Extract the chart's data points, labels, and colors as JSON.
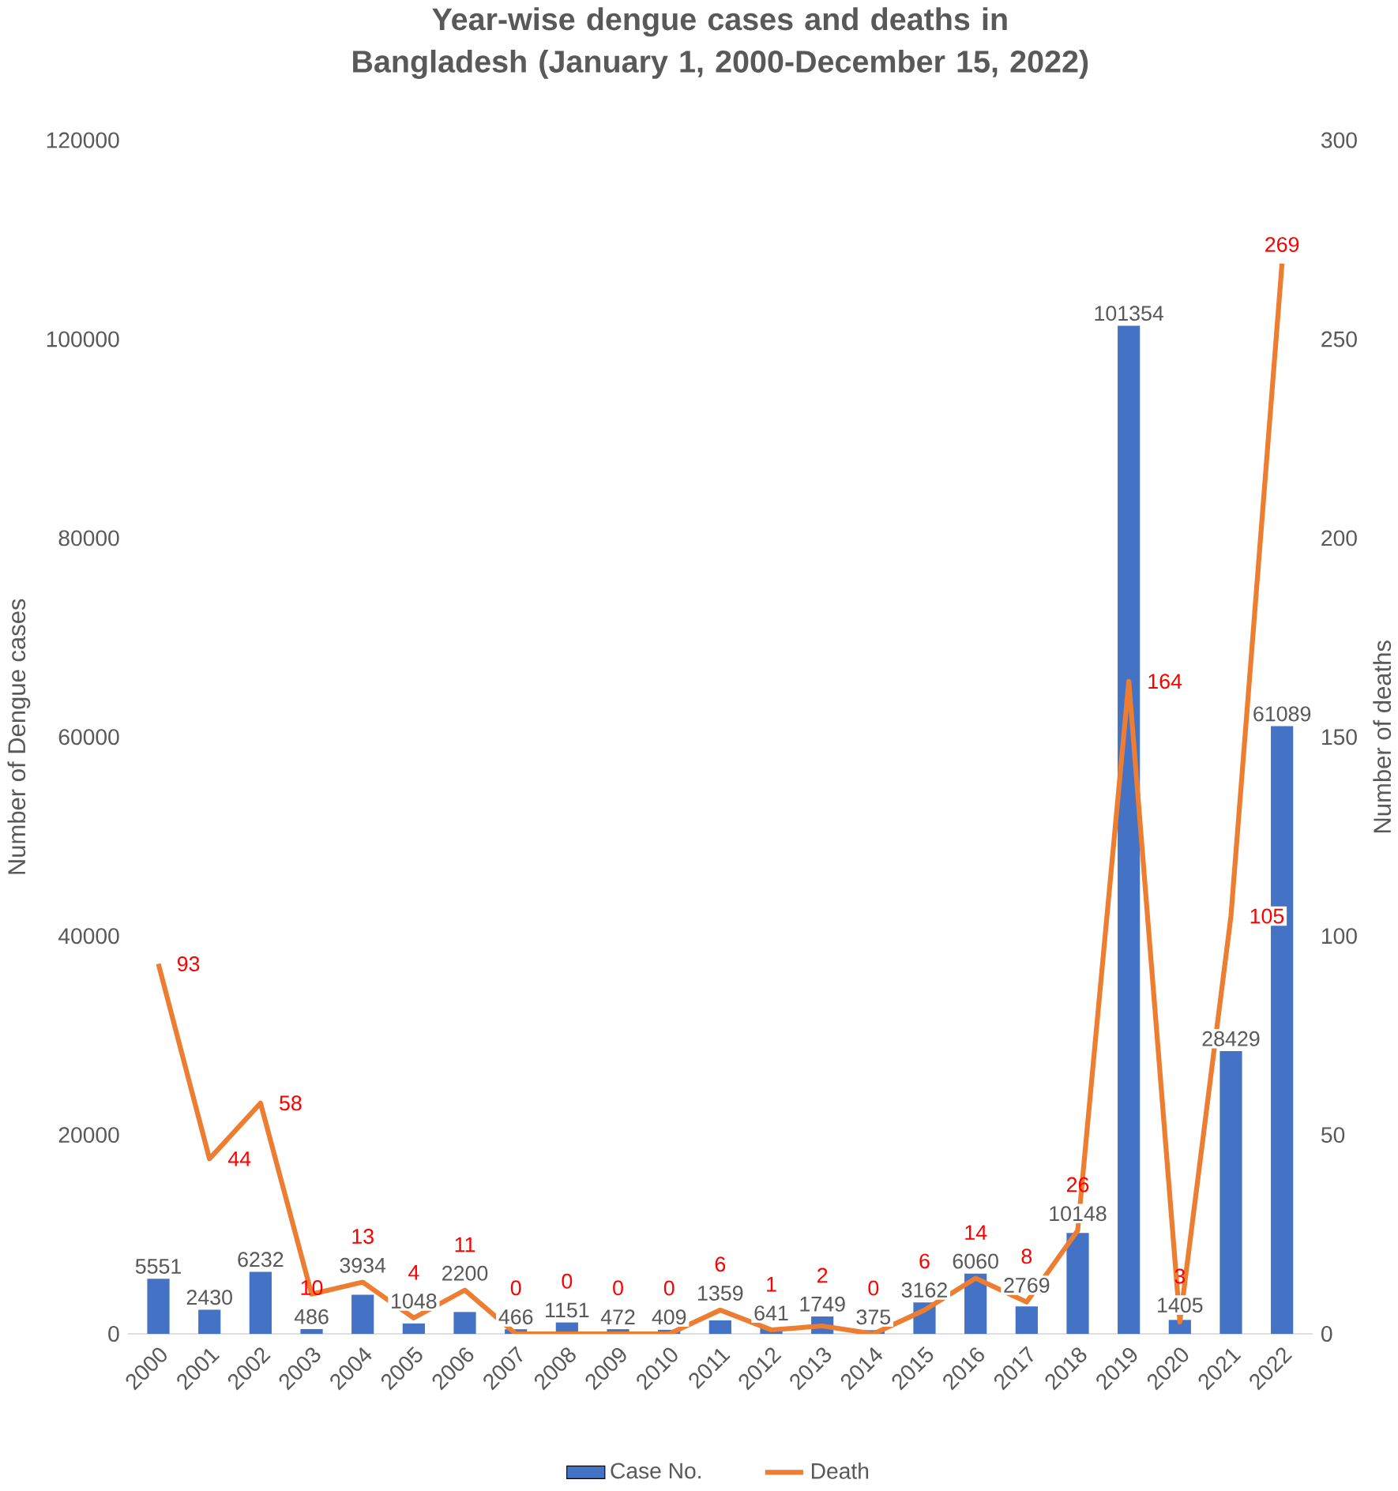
{
  "chart_data": {
    "type": "bar",
    "title": "Year-wise dengue cases and deaths in Bangladesh (January 1, 2000-December 15, 2022)",
    "ylabel": "Number of Dengue cases",
    "y2label": "Number of deaths",
    "categories": [
      "2000",
      "2001",
      "2002",
      "2003",
      "2004",
      "2005",
      "2006",
      "2007",
      "2008",
      "2009",
      "2010",
      "2011",
      "2012",
      "2013",
      "2014",
      "2015",
      "2016",
      "2017",
      "2018",
      "2019",
      "2020",
      "2021",
      "2022"
    ],
    "series": [
      {
        "name": "Case No.",
        "color": "#4472c4",
        "values": [
          5551,
          2430,
          6232,
          486,
          3934,
          1048,
          2200,
          466,
          1151,
          472,
          409,
          1359,
          641,
          1749,
          375,
          3162,
          6060,
          2769,
          10148,
          101354,
          1405,
          28429,
          61089
        ]
      },
      {
        "name": "Death",
        "type": "line",
        "axis": "y2",
        "color": "#ed7d31",
        "values": [
          93,
          44,
          58,
          10,
          13,
          4,
          11,
          0,
          0,
          0,
          0,
          6,
          1,
          2,
          0,
          6,
          14,
          8,
          26,
          164,
          3,
          105,
          269
        ]
      }
    ],
    "ylim": [
      0,
      120000
    ],
    "yticks": [
      0,
      20000,
      40000,
      60000,
      80000,
      100000,
      120000
    ],
    "y2lim": [
      0,
      300
    ],
    "y2ticks": [
      0,
      50,
      100,
      150,
      200,
      250,
      300
    ],
    "data_labels": true,
    "legend": "bottom",
    "grid": false,
    "marker": "none",
    "line_style": "solid"
  }
}
